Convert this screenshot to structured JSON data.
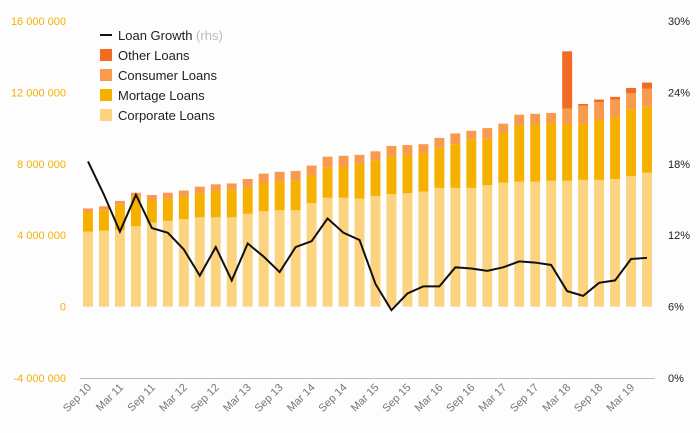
{
  "chart_data": {
    "type": "bar",
    "stacked": true,
    "x": [
      "Sep 10",
      "Dec 10",
      "Mar 11",
      "Jun 11",
      "Sep 11",
      "Dec 11",
      "Mar 12",
      "Jun 12",
      "Sep 12",
      "Dec 12",
      "Mar 13",
      "Jun 13",
      "Sep 13",
      "Dec 13",
      "Mar 14",
      "Jun 14",
      "Sep 14",
      "Dec 14",
      "Mar 15",
      "Jun 15",
      "Sep 15",
      "Dec 15",
      "Mar 16",
      "Jun 16",
      "Sep 16",
      "Dec 16",
      "Mar 17",
      "Jun 17",
      "Sep 17",
      "Dec 17",
      "Mar 18",
      "Jun 18",
      "Sep 18",
      "Dec 18",
      "Mar 19",
      "Jun 19"
    ],
    "x_tick_labels": [
      "Sep 10",
      "Mar 11",
      "Sep 11",
      "Mar 12",
      "Sep 12",
      "Mar 13",
      "Sep 13",
      "Mar 14",
      "Sep 14",
      "Mar 15",
      "Sep 15",
      "Mar 16",
      "Sep 16",
      "Mar 17",
      "Sep 17",
      "Mar 18",
      "Sep 18",
      "Mar 19"
    ],
    "series": [
      {
        "name": "Corporate Loans",
        "color": "#fcd37f",
        "values": [
          4200000,
          4250000,
          4300000,
          4500000,
          4700000,
          4800000,
          4900000,
          5000000,
          5000000,
          5000000,
          5200000,
          5350000,
          5400000,
          5400000,
          5800000,
          6100000,
          6100000,
          6050000,
          6200000,
          6300000,
          6350000,
          6450000,
          6650000,
          6650000,
          6650000,
          6800000,
          6950000,
          7000000,
          7000000,
          7050000,
          7050000,
          7100000,
          7100000,
          7150000,
          7300000,
          7500000
        ]
      },
      {
        "name": "Mortage Loans",
        "color": "#f6b000",
        "values": [
          1100000,
          1150000,
          1400000,
          1650000,
          1250000,
          1250000,
          1250000,
          1350000,
          1500000,
          1550000,
          1450000,
          1600000,
          1600000,
          1650000,
          1550000,
          1700000,
          1750000,
          1950000,
          2000000,
          2100000,
          2150000,
          2150000,
          2250000,
          2450000,
          2700000,
          2600000,
          2800000,
          3150000,
          3200000,
          3200000,
          3150000,
          3150000,
          3350000,
          3450000,
          3750000,
          3700000
        ]
      },
      {
        "name": "Consumer Loans",
        "color": "#f99b4d",
        "values": [
          200000,
          220000,
          220000,
          230000,
          300000,
          330000,
          350000,
          370000,
          350000,
          350000,
          500000,
          500000,
          550000,
          550000,
          550000,
          600000,
          600000,
          500000,
          500000,
          600000,
          550000,
          500000,
          550000,
          600000,
          500000,
          600000,
          500000,
          600000,
          600000,
          600000,
          900000,
          1000000,
          1000000,
          1000000,
          900000,
          1000000
        ]
      },
      {
        "name": "Other Loans",
        "color": "#f26b23",
        "values": [
          0,
          0,
          0,
          0,
          0,
          0,
          0,
          0,
          0,
          0,
          0,
          0,
          0,
          0,
          0,
          0,
          0,
          0,
          0,
          0,
          0,
          0,
          0,
          0,
          0,
          0,
          0,
          0,
          0,
          0,
          3200000,
          100000,
          150000,
          150000,
          300000,
          350000
        ]
      }
    ],
    "line": {
      "name": "Loan Growth",
      "name_note": "(rhs)",
      "color": "#111111",
      "axis": "right",
      "values": [
        18.2,
        15.4,
        12.3,
        15.4,
        12.6,
        12.2,
        10.8,
        8.6,
        11.0,
        8.2,
        11.3,
        10.2,
        8.9,
        11.0,
        11.5,
        13.4,
        12.2,
        11.6,
        7.9,
        5.7,
        7.1,
        7.7,
        7.7,
        9.3,
        9.2,
        9.0,
        9.3,
        9.8,
        9.7,
        9.5,
        7.3,
        6.9,
        8.0,
        8.2,
        10.0,
        10.1
      ]
    },
    "y_left": {
      "min": -4000000,
      "max": 16000000,
      "ticks": [
        -4000000,
        0,
        4000000,
        8000000,
        12000000,
        16000000
      ],
      "tick_labels": [
        "-4 000 000",
        "0",
        "4 000 000",
        "8 000 000",
        "12 000 000",
        "16 000 000"
      ],
      "color": "#f5b000"
    },
    "y_right": {
      "min": 0,
      "max": 30,
      "ticks": [
        0,
        6,
        12,
        18,
        24,
        30
      ],
      "tick_labels": [
        "0%",
        "6%",
        "12%",
        "18%",
        "24%",
        "30%"
      ]
    },
    "grid": false,
    "legend_position": "top-left",
    "legend": [
      {
        "label": "Loan Growth",
        "note": "(rhs)",
        "kind": "line",
        "color": "#111111"
      },
      {
        "label": "Other Loans",
        "kind": "box",
        "color": "#f26b23"
      },
      {
        "label": "Consumer Loans",
        "kind": "box",
        "color": "#f99b4d"
      },
      {
        "label": "Mortage Loans",
        "kind": "box",
        "color": "#f6b000"
      },
      {
        "label": "Corporate Loans",
        "kind": "box",
        "color": "#fcd37f"
      }
    ]
  }
}
